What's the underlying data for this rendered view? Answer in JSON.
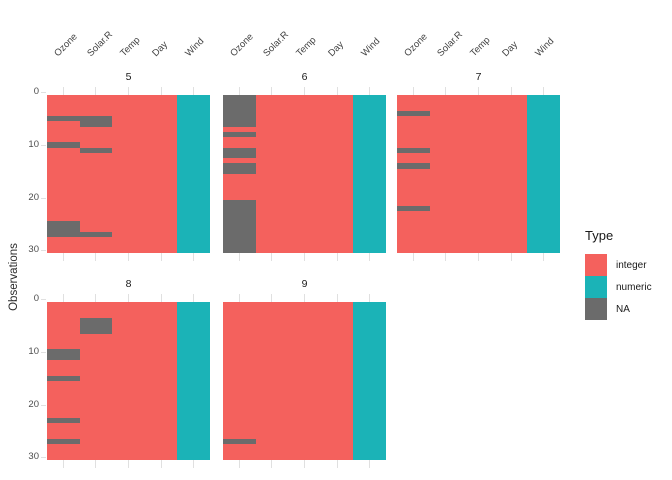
{
  "y_axis": {
    "title": "Observations",
    "tick_labels": [
      "0",
      "10",
      "20",
      "30"
    ]
  },
  "legend": {
    "title": "Type",
    "entries": [
      {
        "label": "integer",
        "color": "#F4615D"
      },
      {
        "label": "numeric",
        "color": "#1BB3B7"
      },
      {
        "label": "NA",
        "color": "#6B6B6B"
      }
    ]
  },
  "chart_data": {
    "type": "heatmap",
    "title": "",
    "ylabel": "Observations",
    "y_axis": {
      "min": 0,
      "max": 30,
      "ticks": [
        0,
        10,
        20,
        30
      ],
      "direction": "top-down"
    },
    "columns": [
      {
        "name": "Ozone",
        "type": "integer"
      },
      {
        "name": "Solar.R",
        "type": "integer"
      },
      {
        "name": "Temp",
        "type": "integer"
      },
      {
        "name": "Day",
        "type": "integer"
      },
      {
        "name": "Wind",
        "type": "numeric"
      }
    ],
    "facets": [
      {
        "label": "5",
        "row": 0,
        "col": 0,
        "na": {
          "Ozone": [
            5,
            10,
            25,
            26,
            27
          ],
          "Solar.R": [
            5,
            6,
            11,
            27
          ]
        }
      },
      {
        "label": "6",
        "row": 0,
        "col": 1,
        "na": {
          "Ozone": [
            1,
            2,
            3,
            4,
            5,
            6,
            8,
            11,
            12,
            14,
            15,
            21,
            22,
            23,
            24,
            25,
            26,
            27,
            28,
            29,
            30
          ]
        }
      },
      {
        "label": "7",
        "row": 0,
        "col": 2,
        "na": {
          "Ozone": [
            4,
            11,
            14,
            22
          ]
        }
      },
      {
        "label": "8",
        "row": 1,
        "col": 0,
        "na": {
          "Ozone": [
            10,
            11,
            15,
            23,
            27
          ],
          "Solar.R": [
            4,
            5,
            6
          ]
        }
      },
      {
        "label": "9",
        "row": 1,
        "col": 1,
        "na": {
          "Ozone": [
            27
          ]
        }
      }
    ],
    "palette": {
      "integer": "#F4615D",
      "numeric": "#1BB3B7",
      "na": "#6B6B6B"
    },
    "legend_position": "right",
    "grid": false
  }
}
